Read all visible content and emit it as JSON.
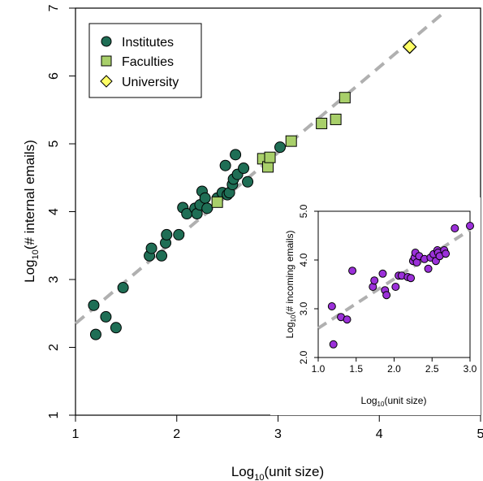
{
  "chart_data": [
    {
      "type": "scatter",
      "xlabel_prefix": "Log",
      "xlabel_sub": "10",
      "xlabel_rest": "(unit size)",
      "ylabel_prefix": "Log",
      "ylabel_sub": "10",
      "ylabel_rest": "(# internal emails)",
      "xlim": [
        1,
        5
      ],
      "ylim": [
        1,
        7
      ],
      "xticks": [
        "1",
        "2",
        "3",
        "4",
        "5"
      ],
      "yticks": [
        "1",
        "2",
        "3",
        "4",
        "5",
        "6",
        "7"
      ],
      "legend_position": "top-left",
      "fit_line": {
        "x": [
          1.0,
          4.65
        ],
        "y": [
          2.35,
          6.95
        ],
        "color": "#b0b0b0",
        "style": "dashed"
      },
      "series": [
        {
          "name": "Institutes",
          "marker": "circle",
          "color": "#1f6e55",
          "points": [
            [
              1.18,
              2.62
            ],
            [
              1.2,
              2.19
            ],
            [
              1.3,
              2.45
            ],
            [
              1.4,
              2.29
            ],
            [
              1.47,
              2.88
            ],
            [
              1.73,
              3.35
            ],
            [
              1.75,
              3.46
            ],
            [
              1.85,
              3.35
            ],
            [
              1.89,
              3.54
            ],
            [
              1.9,
              3.66
            ],
            [
              2.02,
              3.66
            ],
            [
              2.06,
              4.06
            ],
            [
              2.1,
              3.97
            ],
            [
              2.18,
              4.05
            ],
            [
              2.2,
              3.97
            ],
            [
              2.23,
              4.1
            ],
            [
              2.25,
              4.3
            ],
            [
              2.28,
              4.2
            ],
            [
              2.3,
              4.05
            ],
            [
              2.4,
              4.2
            ],
            [
              2.45,
              4.28
            ],
            [
              2.48,
              4.68
            ],
            [
              2.5,
              4.25
            ],
            [
              2.52,
              4.28
            ],
            [
              2.55,
              4.4
            ],
            [
              2.56,
              4.48
            ],
            [
              2.58,
              4.84
            ],
            [
              2.6,
              4.55
            ],
            [
              2.66,
              4.64
            ],
            [
              2.7,
              4.44
            ],
            [
              3.02,
              4.95
            ]
          ]
        },
        {
          "name": "Faculties",
          "marker": "square",
          "color": "#a8cf6a",
          "points": [
            [
              2.4,
              4.14
            ],
            [
              2.85,
              4.78
            ],
            [
              2.9,
              4.66
            ],
            [
              2.92,
              4.8
            ],
            [
              3.13,
              5.04
            ],
            [
              3.43,
              5.3
            ],
            [
              3.57,
              5.36
            ],
            [
              3.66,
              5.68
            ]
          ]
        },
        {
          "name": "University",
          "marker": "diamond",
          "color": "#ffff66",
          "points": [
            [
              4.3,
              6.43
            ]
          ]
        }
      ]
    },
    {
      "type": "scatter",
      "xlabel_prefix": "Log",
      "xlabel_sub": "10",
      "xlabel_rest": "(unit size)",
      "ylabel_prefix": "Log",
      "ylabel_sub": "10",
      "ylabel_rest": "(# incoming emails)",
      "xlim": [
        1,
        3
      ],
      "ylim": [
        2,
        5
      ],
      "xticks": [
        "1.0",
        "1.5",
        "2.0",
        "2.5",
        "3.0"
      ],
      "yticks": [
        "2.0",
        "3.0",
        "4.0",
        "5.0"
      ],
      "fit_line": {
        "x": [
          1.0,
          3.0
        ],
        "y": [
          2.6,
          4.62
        ],
        "color": "#b0b0b0",
        "style": "dashed"
      },
      "series": [
        {
          "marker": "circle",
          "color": "#9b30d9",
          "points": [
            [
              1.18,
              3.05
            ],
            [
              1.2,
              2.27
            ],
            [
              1.3,
              2.83
            ],
            [
              1.38,
              2.78
            ],
            [
              1.45,
              3.78
            ],
            [
              1.72,
              3.45
            ],
            [
              1.74,
              3.58
            ],
            [
              1.85,
              3.72
            ],
            [
              1.88,
              3.38
            ],
            [
              1.9,
              3.28
            ],
            [
              2.02,
              3.45
            ],
            [
              2.06,
              3.68
            ],
            [
              2.1,
              3.68
            ],
            [
              2.18,
              3.65
            ],
            [
              2.22,
              3.63
            ],
            [
              2.25,
              3.98
            ],
            [
              2.27,
              4.05
            ],
            [
              2.28,
              4.15
            ],
            [
              2.3,
              3.95
            ],
            [
              2.33,
              4.08
            ],
            [
              2.4,
              4.02
            ],
            [
              2.45,
              3.82
            ],
            [
              2.48,
              4.05
            ],
            [
              2.52,
              4.12
            ],
            [
              2.55,
              3.98
            ],
            [
              2.57,
              4.2
            ],
            [
              2.58,
              4.15
            ],
            [
              2.6,
              4.08
            ],
            [
              2.66,
              4.2
            ],
            [
              2.68,
              4.13
            ],
            [
              2.8,
              4.65
            ],
            [
              3.0,
              4.7
            ]
          ]
        }
      ]
    }
  ]
}
